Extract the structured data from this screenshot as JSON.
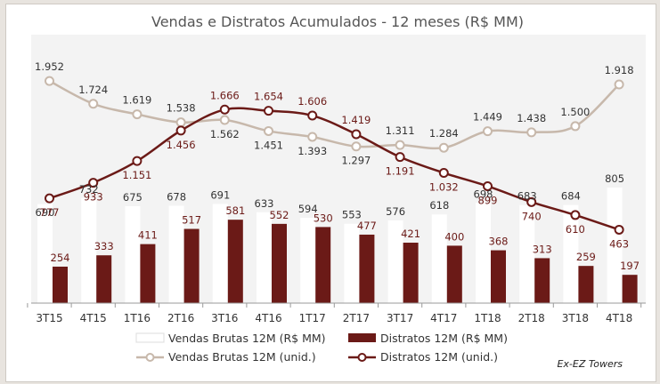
{
  "chart_data": {
    "type": "bar",
    "title": "Vendas e Distratos Acumulados - 12 meses (R$ MM)",
    "categories": [
      "3T15",
      "4T15",
      "1T16",
      "2T16",
      "3T16",
      "4T16",
      "1T17",
      "2T17",
      "3T17",
      "4T17",
      "1T18",
      "2T18",
      "3T18",
      "4T18"
    ],
    "series": [
      {
        "name": "Vendas Brutas 12M (R$ MM)",
        "kind": "bar",
        "color": "#ffffff",
        "values": [
          690,
          732,
          675,
          678,
          691,
          633,
          594,
          553,
          576,
          618,
          698,
          683,
          684,
          805
        ],
        "labels": [
          "690",
          "732",
          "675",
          "678",
          "691",
          "633",
          "594",
          "553",
          "576",
          "618",
          "698",
          "683",
          "684",
          "805"
        ]
      },
      {
        "name": "Distratos 12M (R$ MM)",
        "kind": "bar",
        "color": "#6b1a17",
        "values": [
          254,
          333,
          411,
          517,
          581,
          552,
          530,
          477,
          421,
          400,
          368,
          313,
          259,
          197
        ],
        "labels": [
          "254",
          "333",
          "411",
          "517",
          "581",
          "552",
          "530",
          "477",
          "421",
          "400",
          "368",
          "313",
          "259",
          "197"
        ]
      },
      {
        "name": "Vendas Brutas 12M (unid.)",
        "kind": "line",
        "color": "#c7b8ab",
        "values": [
          1952,
          1724,
          1619,
          1538,
          1562,
          1451,
          1393,
          1297,
          1311,
          1284,
          1449,
          1438,
          1500,
          1918
        ],
        "labels": [
          "1.952",
          "1.724",
          "1.619",
          "1.538",
          "1.562",
          "1.451",
          "1.393",
          "1.297",
          "1.311",
          "1.284",
          "1.449",
          "1.438",
          "1.500",
          "1.918"
        ]
      },
      {
        "name": "Distratos 12M (unid.)",
        "kind": "line",
        "color": "#6b1a17",
        "values": [
          777,
          933,
          1151,
          1456,
          1666,
          1654,
          1606,
          1419,
          1191,
          1032,
          899,
          740,
          610,
          463
        ],
        "labels": [
          "777",
          "933",
          "1.151",
          "1.456",
          "1.666",
          "1.654",
          "1.606",
          "1.419",
          "1.191",
          "1.032",
          "899",
          "740",
          "610",
          "463"
        ]
      }
    ],
    "grid": false,
    "legend": "bottom"
  },
  "note": "Ex-EZ Towers"
}
